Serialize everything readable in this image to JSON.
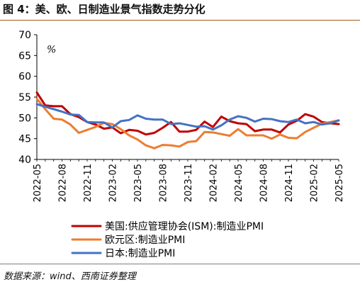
{
  "figure_title": "图 4：美、欧、日制造业景气指数走势分化",
  "source_note": "数据来源：wind、西南证券整理",
  "chart_data": {
    "type": "line",
    "unit_label": "%",
    "ylim": [
      40,
      70
    ],
    "yticks": [
      40,
      45,
      50,
      55,
      60,
      65,
      70
    ],
    "x": [
      "2022-05",
      "2022-06",
      "2022-07",
      "2022-08",
      "2022-09",
      "2022-10",
      "2022-11",
      "2022-12",
      "2023-01",
      "2023-02",
      "2023-03",
      "2023-04",
      "2023-05",
      "2023-06",
      "2023-07",
      "2023-08",
      "2023-09",
      "2023-10",
      "2023-11",
      "2023-12",
      "2024-01",
      "2024-02",
      "2024-03",
      "2024-04",
      "2024-05",
      "2024-06",
      "2024-07",
      "2024-08",
      "2024-09",
      "2024-10",
      "2024-11",
      "2024-12",
      "2025-01",
      "2025-02",
      "2025-03",
      "2025-04",
      "2025-05"
    ],
    "xtick_labels": [
      "2022-05",
      "2022-08",
      "2022-11",
      "2023-02",
      "2023-05",
      "2023-08",
      "2023-11",
      "2024-02",
      "2024-05",
      "2024-08",
      "2024-11",
      "2025-02",
      "2025-05"
    ],
    "grid": false,
    "legend_position": "bottom",
    "series": [
      {
        "name": "美国:供应管理协会(ISM):制造业PMI",
        "color": "#c00000",
        "values": [
          56.1,
          53.0,
          52.8,
          52.8,
          50.9,
          50.2,
          49.0,
          48.4,
          47.4,
          47.7,
          46.3,
          47.1,
          46.9,
          46.0,
          46.4,
          47.6,
          49.0,
          46.7,
          46.7,
          47.1,
          49.1,
          47.8,
          50.3,
          49.2,
          48.7,
          48.5,
          46.8,
          47.2,
          47.2,
          46.5,
          48.4,
          49.3,
          50.9,
          50.3,
          49.0,
          48.7,
          48.5
        ]
      },
      {
        "name": "欧元区:制造业PMI",
        "color": "#ed7d31",
        "values": [
          54.6,
          52.1,
          49.8,
          49.6,
          48.4,
          46.4,
          47.1,
          47.8,
          48.8,
          48.5,
          47.3,
          45.8,
          44.8,
          43.4,
          42.7,
          43.5,
          43.4,
          43.1,
          44.2,
          44.4,
          46.6,
          46.5,
          46.1,
          45.7,
          47.3,
          45.8,
          45.8,
          45.8,
          45.0,
          46.0,
          45.2,
          45.1,
          46.6,
          47.6,
          48.6,
          49.0,
          49.4
        ]
      },
      {
        "name": "日本:制造业PMI",
        "color": "#4472c4",
        "values": [
          53.3,
          52.7,
          52.1,
          51.5,
          50.8,
          50.7,
          49.0,
          48.9,
          48.9,
          47.7,
          49.2,
          49.5,
          50.6,
          49.8,
          49.6,
          49.6,
          48.5,
          48.7,
          48.3,
          47.9,
          48.0,
          47.2,
          48.2,
          49.6,
          50.4,
          50.0,
          49.1,
          49.8,
          49.7,
          49.2,
          49.0,
          49.6,
          48.7,
          49.0,
          48.4,
          48.7,
          49.4
        ]
      }
    ]
  }
}
